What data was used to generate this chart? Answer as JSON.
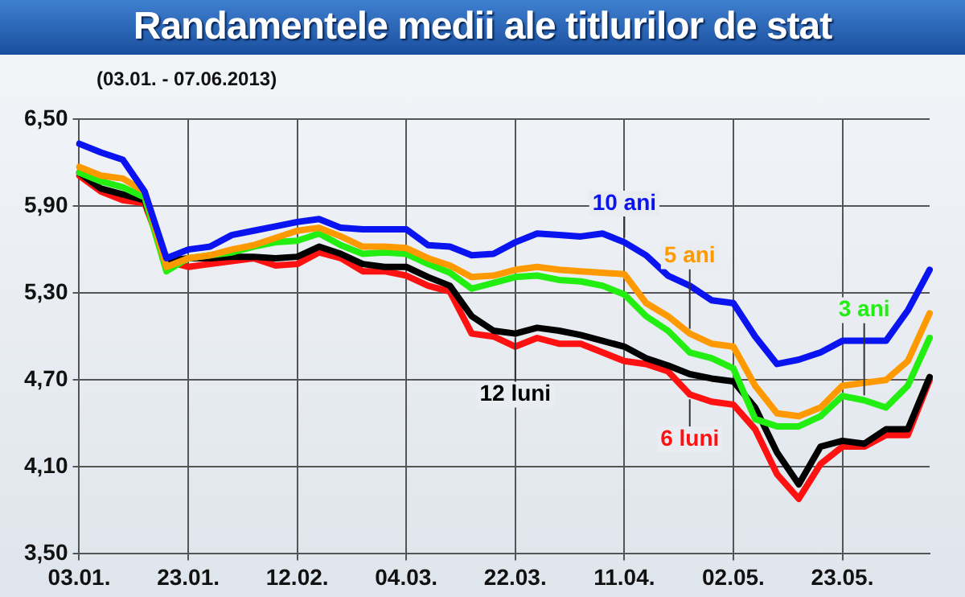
{
  "chart_data": {
    "type": "line",
    "title": "Randamentele medii ale titlurilor de stat",
    "subtitle": "(03.01. - 07.06.2013)",
    "categories": [
      "03.01.",
      null,
      null,
      null,
      null,
      "23.01.",
      null,
      null,
      null,
      null,
      "12.02.",
      null,
      null,
      null,
      null,
      "04.03.",
      null,
      null,
      null,
      null,
      "22.03.",
      null,
      null,
      null,
      null,
      "11.04.",
      null,
      null,
      null,
      null,
      "02.05.",
      null,
      null,
      null,
      null,
      "23.05.",
      null,
      null,
      null,
      null
    ],
    "series": [
      {
        "name": "10 ani",
        "color": "#0a14f0",
        "values": [
          6.33,
          6.27,
          6.22,
          6.0,
          5.54,
          5.6,
          5.62,
          5.7,
          5.73,
          5.76,
          5.79,
          5.81,
          5.75,
          5.74,
          5.74,
          5.74,
          5.63,
          5.62,
          5.56,
          5.57,
          5.65,
          5.71,
          5.7,
          5.69,
          5.71,
          5.65,
          5.56,
          5.42,
          5.35,
          5.25,
          5.23,
          5.0,
          4.81,
          4.84,
          4.89,
          4.97,
          4.97,
          4.97,
          5.18,
          5.46
        ]
      },
      {
        "name": "5 ani",
        "color": "#ff9900",
        "values": [
          6.17,
          6.11,
          6.09,
          6.0,
          5.48,
          5.54,
          5.56,
          5.6,
          5.63,
          5.68,
          5.73,
          5.75,
          5.69,
          5.62,
          5.62,
          5.61,
          5.54,
          5.49,
          5.41,
          5.42,
          5.46,
          5.48,
          5.46,
          5.45,
          5.44,
          5.43,
          5.23,
          5.14,
          5.02,
          4.95,
          4.93,
          4.66,
          4.47,
          4.45,
          4.51,
          4.66,
          4.68,
          4.7,
          4.83,
          5.16
        ]
      },
      {
        "name": "3 ani",
        "color": "#22ee11",
        "values": [
          6.13,
          6.07,
          6.03,
          5.96,
          5.45,
          5.54,
          5.56,
          5.58,
          5.62,
          5.65,
          5.66,
          5.71,
          5.63,
          5.57,
          5.58,
          5.57,
          5.5,
          5.44,
          5.33,
          5.37,
          5.41,
          5.42,
          5.39,
          5.38,
          5.35,
          5.29,
          5.14,
          5.04,
          4.89,
          4.85,
          4.78,
          4.43,
          4.38,
          4.38,
          4.45,
          4.59,
          4.56,
          4.51,
          4.66,
          4.99
        ]
      },
      {
        "name": "12 luni",
        "color": "#000000",
        "values": [
          6.13,
          6.02,
          5.98,
          5.94,
          5.52,
          5.54,
          5.54,
          5.55,
          5.55,
          5.54,
          5.55,
          5.62,
          5.57,
          5.5,
          5.48,
          5.48,
          5.41,
          5.35,
          5.14,
          5.04,
          5.02,
          5.06,
          5.04,
          5.01,
          4.97,
          4.93,
          4.85,
          4.8,
          4.74,
          4.71,
          4.69,
          4.51,
          4.2,
          3.98,
          4.24,
          4.28,
          4.26,
          4.36,
          4.36,
          4.72
        ]
      },
      {
        "name": "6 luni",
        "color": "#ff1111",
        "values": [
          6.11,
          6.0,
          5.94,
          5.92,
          5.52,
          5.48,
          5.5,
          5.52,
          5.54,
          5.49,
          5.5,
          5.58,
          5.54,
          5.45,
          5.45,
          5.42,
          5.35,
          5.31,
          5.02,
          5.0,
          4.93,
          4.99,
          4.95,
          4.95,
          4.89,
          4.83,
          4.81,
          4.76,
          4.6,
          4.55,
          4.53,
          4.36,
          4.05,
          3.88,
          4.12,
          4.24,
          4.24,
          4.32,
          4.32,
          4.7
        ]
      }
    ],
    "ylim": [
      3.5,
      6.5
    ],
    "yticks": [
      {
        "value": 3.5,
        "label": "3,50"
      },
      {
        "value": 4.1,
        "label": "4,10"
      },
      {
        "value": 4.7,
        "label": "4,70"
      },
      {
        "value": 5.3,
        "label": "5,30"
      },
      {
        "value": 5.9,
        "label": "5,90"
      },
      {
        "value": 6.5,
        "label": "6,50"
      }
    ],
    "grid": true,
    "marker": "none",
    "line_style": "solid",
    "legend": false
  }
}
